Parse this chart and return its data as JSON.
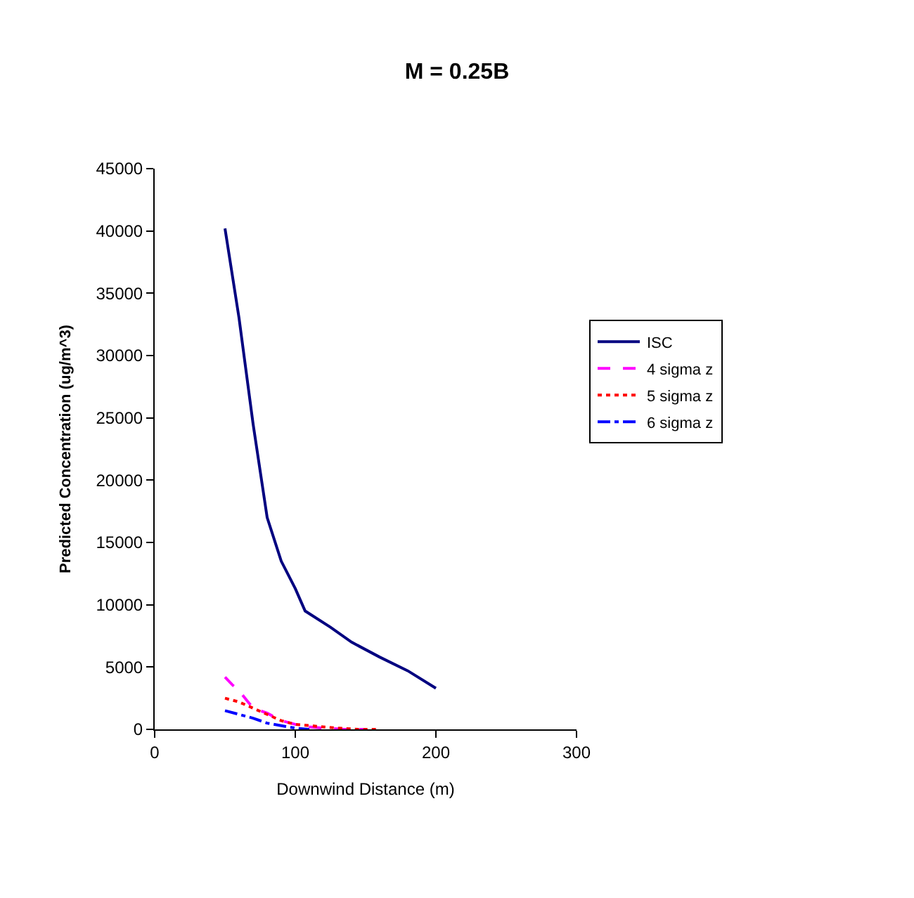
{
  "chart_data": {
    "type": "line",
    "title": "M = 0.25B",
    "xlabel": "Downwind Distance (m)",
    "ylabel": "Predicted Concentration (ug/m^3)",
    "xlim": [
      0,
      300
    ],
    "xticks": [
      0,
      100,
      200,
      300
    ],
    "ylim": [
      0,
      45000
    ],
    "yticks": [
      0,
      5000,
      10000,
      15000,
      20000,
      25000,
      30000,
      35000,
      40000,
      45000
    ],
    "legend": "right",
    "series": [
      {
        "name": "ISC",
        "color": "#000080",
        "line_style": "solid",
        "x": [
          50,
          60,
          70,
          80,
          90,
          100,
          107,
          125,
          140,
          160,
          180,
          200
        ],
        "values": [
          40200,
          33000,
          24500,
          17000,
          13500,
          11300,
          9500,
          8200,
          7000,
          5800,
          4700,
          3300
        ]
      },
      {
        "name": "4 sigma z",
        "color": "#ff00ff",
        "line_style": "dashed",
        "x": [
          50,
          55,
          60,
          65,
          70,
          80,
          90,
          100,
          110,
          120,
          135,
          150
        ],
        "values": [
          4200,
          3600,
          3100,
          2400,
          1700,
          1300,
          700,
          400,
          200,
          100,
          0,
          0
        ]
      },
      {
        "name": "5 sigma z",
        "color": "#ff0000",
        "line_style": "dotted",
        "x": [
          50,
          60,
          70,
          80,
          90,
          100,
          110,
          120,
          130,
          145,
          160
        ],
        "values": [
          2500,
          2200,
          1700,
          1200,
          700,
          400,
          300,
          200,
          100,
          0,
          0
        ]
      },
      {
        "name": "6 sigma z",
        "color": "#0000ff",
        "line_style": "dashdot",
        "x": [
          50,
          60,
          70,
          80,
          90,
          100,
          110
        ],
        "values": [
          1500,
          1200,
          900,
          500,
          300,
          100,
          0
        ]
      }
    ]
  }
}
